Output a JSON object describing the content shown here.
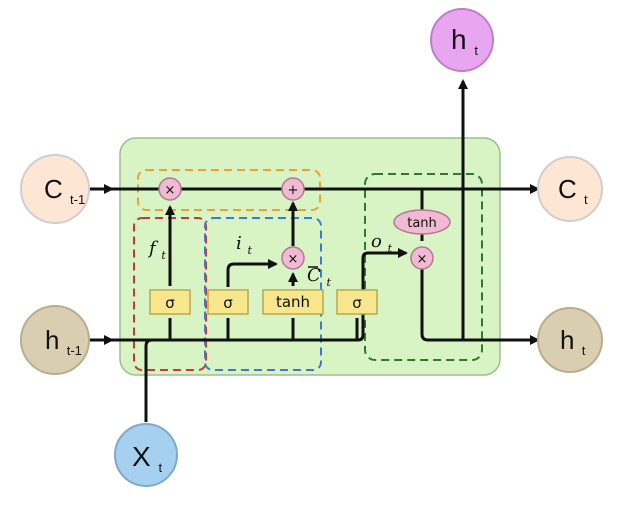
{
  "diagram": {
    "inputs": {
      "c_prev": {
        "main": "C",
        "sub": "t-1",
        "fill": "#fde6d4"
      },
      "h_prev": {
        "main": "h",
        "sub": "t-1",
        "fill": "#d9cfb0"
      },
      "x_t": {
        "main": "X",
        "sub": "t",
        "fill": "#a6d0f0"
      }
    },
    "outputs": {
      "c_t": {
        "main": "C",
        "sub": "t",
        "fill": "#fde6d4"
      },
      "h_t_right": {
        "main": "h",
        "sub": "t",
        "fill": "#d9cfb0"
      },
      "h_t_top": {
        "main": "h",
        "sub": "t",
        "fill": "#e7a6ef"
      }
    },
    "gates": {
      "forget": "σ",
      "input": "σ",
      "candidate": "tanh",
      "output": "σ"
    },
    "operations": {
      "forget_multiply": "×",
      "cell_add": "+",
      "input_multiply": "×",
      "output_tanh": "tanh",
      "output_multiply": "×"
    },
    "labels": {
      "f": {
        "main": "f",
        "sub": "t"
      },
      "i": {
        "main": "i",
        "sub": "t"
      },
      "c_tilde": {
        "main": "C",
        "sub": "t"
      },
      "o": {
        "main": "o",
        "sub": "t"
      }
    },
    "colors": {
      "cell_background": "#d8f3c4",
      "gate_box": "#f7e68c",
      "op_circle": "#f1b9d2",
      "forget_group": "#c33a3a",
      "input_group": "#3d7ad0",
      "output_group": "#2f7a2a",
      "cell_state_group": "#f0a030"
    }
  }
}
